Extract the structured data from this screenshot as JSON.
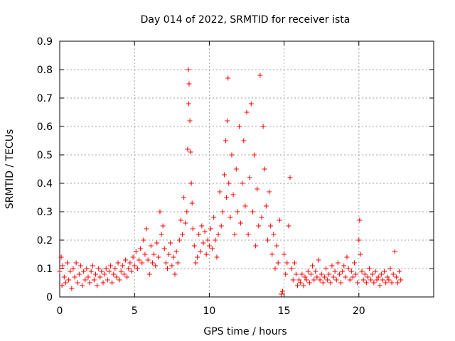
{
  "chart_data": {
    "type": "scatter",
    "title": "Day 014 of 2022, SRMTID for receiver ista",
    "xlabel": "GPS time / hours",
    "ylabel": "SRMTID / TECUs",
    "xlim": [
      0,
      25
    ],
    "ylim": [
      0,
      0.9
    ],
    "xticks": [
      "0",
      "5",
      "10",
      "15",
      "20"
    ],
    "yticks": [
      "0",
      "0.1",
      "0.2",
      "0.3",
      "0.4",
      "0.5",
      "0.6",
      "0.7",
      "0.8",
      "0.9"
    ],
    "grid": true,
    "marker": "plus",
    "color": "#ff0000",
    "series": [
      {
        "name": "SRMTID",
        "points": [
          [
            0.0,
            0.09
          ],
          [
            0.1,
            0.14
          ],
          [
            0.15,
            0.04
          ],
          [
            0.2,
            0.11
          ],
          [
            0.3,
            0.07
          ],
          [
            0.4,
            0.05
          ],
          [
            0.5,
            0.12
          ],
          [
            0.6,
            0.06
          ],
          [
            0.7,
            0.09
          ],
          [
            0.8,
            0.03
          ],
          [
            0.9,
            0.1
          ],
          [
            1.0,
            0.07
          ],
          [
            1.1,
            0.12
          ],
          [
            1.2,
            0.05
          ],
          [
            1.3,
            0.08
          ],
          [
            1.4,
            0.11
          ],
          [
            1.5,
            0.04
          ],
          [
            1.6,
            0.09
          ],
          [
            1.7,
            0.06
          ],
          [
            1.8,
            0.1
          ],
          [
            1.9,
            0.07
          ],
          [
            2.0,
            0.05
          ],
          [
            2.1,
            0.09
          ],
          [
            2.2,
            0.11
          ],
          [
            2.3,
            0.06
          ],
          [
            2.4,
            0.08
          ],
          [
            2.5,
            0.04
          ],
          [
            2.6,
            0.1
          ],
          [
            2.7,
            0.07
          ],
          [
            2.8,
            0.09
          ],
          [
            2.9,
            0.05
          ],
          [
            3.0,
            0.08
          ],
          [
            3.1,
            0.1
          ],
          [
            3.2,
            0.06
          ],
          [
            3.3,
            0.09
          ],
          [
            3.4,
            0.11
          ],
          [
            3.5,
            0.05
          ],
          [
            3.6,
            0.08
          ],
          [
            3.7,
            0.1
          ],
          [
            3.8,
            0.07
          ],
          [
            3.9,
            0.12
          ],
          [
            4.0,
            0.06
          ],
          [
            4.1,
            0.09
          ],
          [
            4.2,
            0.11
          ],
          [
            4.3,
            0.08
          ],
          [
            4.4,
            0.13
          ],
          [
            4.5,
            0.07
          ],
          [
            4.6,
            0.1
          ],
          [
            4.7,
            0.12
          ],
          [
            4.8,
            0.09
          ],
          [
            4.9,
            0.14
          ],
          [
            5.0,
            0.11
          ],
          [
            5.1,
            0.16
          ],
          [
            5.2,
            0.1
          ],
          [
            5.3,
            0.13
          ],
          [
            5.4,
            0.17
          ],
          [
            5.5,
            0.12
          ],
          [
            5.6,
            0.2
          ],
          [
            5.7,
            0.15
          ],
          [
            5.8,
            0.24
          ],
          [
            5.9,
            0.13
          ],
          [
            6.0,
            0.08
          ],
          [
            6.1,
            0.18
          ],
          [
            6.2,
            0.12
          ],
          [
            6.3,
            0.15
          ],
          [
            6.4,
            0.11
          ],
          [
            6.5,
            0.19
          ],
          [
            6.6,
            0.14
          ],
          [
            6.7,
            0.3
          ],
          [
            6.8,
            0.22
          ],
          [
            6.9,
            0.25
          ],
          [
            7.0,
            0.17
          ],
          [
            7.1,
            0.12
          ],
          [
            7.2,
            0.1
          ],
          [
            7.3,
            0.15
          ],
          [
            7.4,
            0.19
          ],
          [
            7.5,
            0.11
          ],
          [
            7.6,
            0.14
          ],
          [
            7.7,
            0.08
          ],
          [
            7.8,
            0.16
          ],
          [
            7.9,
            0.12
          ],
          [
            8.0,
            0.2
          ],
          [
            8.1,
            0.27
          ],
          [
            8.2,
            0.22
          ],
          [
            8.3,
            0.35
          ],
          [
            8.4,
            0.26
          ],
          [
            8.5,
            0.3
          ],
          [
            8.55,
            0.52
          ],
          [
            8.6,
            0.8
          ],
          [
            8.62,
            0.68
          ],
          [
            8.65,
            0.75
          ],
          [
            8.7,
            0.62
          ],
          [
            8.75,
            0.51
          ],
          [
            8.8,
            0.4
          ],
          [
            8.85,
            0.33
          ],
          [
            8.9,
            0.24
          ],
          [
            9.0,
            0.18
          ],
          [
            9.1,
            0.12
          ],
          [
            9.2,
            0.14
          ],
          [
            9.3,
            0.22
          ],
          [
            9.4,
            0.16
          ],
          [
            9.5,
            0.25
          ],
          [
            9.6,
            0.19
          ],
          [
            9.7,
            0.23
          ],
          [
            9.8,
            0.15
          ],
          [
            9.9,
            0.2
          ],
          [
            10.0,
            0.18
          ],
          [
            10.1,
            0.24
          ],
          [
            10.2,
            0.17
          ],
          [
            10.3,
            0.28
          ],
          [
            10.4,
            0.2
          ],
          [
            10.5,
            0.14
          ],
          [
            10.6,
            0.22
          ],
          [
            10.7,
            0.37
          ],
          [
            10.8,
            0.25
          ],
          [
            10.9,
            0.3
          ],
          [
            11.0,
            0.43
          ],
          [
            11.1,
            0.55
          ],
          [
            11.15,
            0.35
          ],
          [
            11.2,
            0.62
          ],
          [
            11.25,
            0.77
          ],
          [
            11.3,
            0.4
          ],
          [
            11.4,
            0.28
          ],
          [
            11.5,
            0.5
          ],
          [
            11.6,
            0.36
          ],
          [
            11.7,
            0.22
          ],
          [
            11.8,
            0.45
          ],
          [
            11.9,
            0.3
          ],
          [
            12.0,
            0.6
          ],
          [
            12.1,
            0.26
          ],
          [
            12.2,
            0.4
          ],
          [
            12.3,
            0.55
          ],
          [
            12.4,
            0.32
          ],
          [
            12.5,
            0.65
          ],
          [
            12.6,
            0.22
          ],
          [
            12.7,
            0.42
          ],
          [
            12.8,
            0.68
          ],
          [
            12.9,
            0.3
          ],
          [
            13.0,
            0.5
          ],
          [
            13.1,
            0.18
          ],
          [
            13.2,
            0.38
          ],
          [
            13.3,
            0.25
          ],
          [
            13.4,
            0.78
          ],
          [
            13.5,
            0.28
          ],
          [
            13.6,
            0.6
          ],
          [
            13.7,
            0.45
          ],
          [
            13.8,
            0.32
          ],
          [
            13.9,
            0.2
          ],
          [
            14.0,
            0.37
          ],
          [
            14.1,
            0.25
          ],
          [
            14.2,
            0.15
          ],
          [
            14.3,
            0.22
          ],
          [
            14.4,
            0.1
          ],
          [
            14.5,
            0.18
          ],
          [
            14.6,
            0.12
          ],
          [
            14.7,
            0.27
          ],
          [
            14.8,
            0.01
          ],
          [
            14.9,
            0.02
          ],
          [
            15.0,
            0.15
          ],
          [
            15.1,
            0.08
          ],
          [
            15.2,
            0.12
          ],
          [
            15.3,
            0.25
          ],
          [
            15.4,
            0.42
          ],
          [
            15.5,
            0.1
          ],
          [
            15.6,
            0.06
          ],
          [
            15.7,
            0.12
          ],
          [
            15.8,
            0.08
          ],
          [
            15.9,
            0.04
          ],
          [
            16.0,
            0.06
          ],
          [
            16.1,
            0.05
          ],
          [
            16.2,
            0.08
          ],
          [
            16.3,
            0.04
          ],
          [
            16.4,
            0.07
          ],
          [
            16.5,
            0.06
          ],
          [
            16.6,
            0.09
          ],
          [
            16.7,
            0.05
          ],
          [
            16.8,
            0.08
          ],
          [
            16.9,
            0.11
          ],
          [
            17.0,
            0.06
          ],
          [
            17.1,
            0.09
          ],
          [
            17.2,
            0.07
          ],
          [
            17.3,
            0.13
          ],
          [
            17.4,
            0.06
          ],
          [
            17.5,
            0.08
          ],
          [
            17.6,
            0.05
          ],
          [
            17.7,
            0.07
          ],
          [
            17.8,
            0.1
          ],
          [
            17.9,
            0.06
          ],
          [
            18.0,
            0.08
          ],
          [
            18.1,
            0.05
          ],
          [
            18.2,
            0.11
          ],
          [
            18.3,
            0.07
          ],
          [
            18.4,
            0.09
          ],
          [
            18.5,
            0.06
          ],
          [
            18.6,
            0.12
          ],
          [
            18.7,
            0.08
          ],
          [
            18.8,
            0.05
          ],
          [
            18.9,
            0.09
          ],
          [
            19.0,
            0.11
          ],
          [
            19.1,
            0.07
          ],
          [
            19.2,
            0.14
          ],
          [
            19.3,
            0.1
          ],
          [
            19.4,
            0.06
          ],
          [
            19.5,
            0.09
          ],
          [
            19.6,
            0.07
          ],
          [
            19.7,
            0.12
          ],
          [
            19.8,
            0.08
          ],
          [
            19.9,
            0.05
          ],
          [
            20.0,
            0.2
          ],
          [
            20.05,
            0.27
          ],
          [
            20.1,
            0.15
          ],
          [
            20.2,
            0.09
          ],
          [
            20.3,
            0.06
          ],
          [
            20.4,
            0.08
          ],
          [
            20.5,
            0.05
          ],
          [
            20.6,
            0.07
          ],
          [
            20.7,
            0.1
          ],
          [
            20.8,
            0.06
          ],
          [
            20.9,
            0.08
          ],
          [
            21.0,
            0.05
          ],
          [
            21.1,
            0.09
          ],
          [
            21.2,
            0.06
          ],
          [
            21.3,
            0.07
          ],
          [
            21.4,
            0.04
          ],
          [
            21.5,
            0.08
          ],
          [
            21.6,
            0.06
          ],
          [
            21.7,
            0.09
          ],
          [
            21.8,
            0.05
          ],
          [
            21.9,
            0.07
          ],
          [
            22.0,
            0.06
          ],
          [
            22.1,
            0.1
          ],
          [
            22.2,
            0.05
          ],
          [
            22.3,
            0.08
          ],
          [
            22.4,
            0.16
          ],
          [
            22.5,
            0.07
          ],
          [
            22.6,
            0.05
          ],
          [
            22.7,
            0.09
          ],
          [
            22.8,
            0.06
          ]
        ]
      }
    ]
  }
}
